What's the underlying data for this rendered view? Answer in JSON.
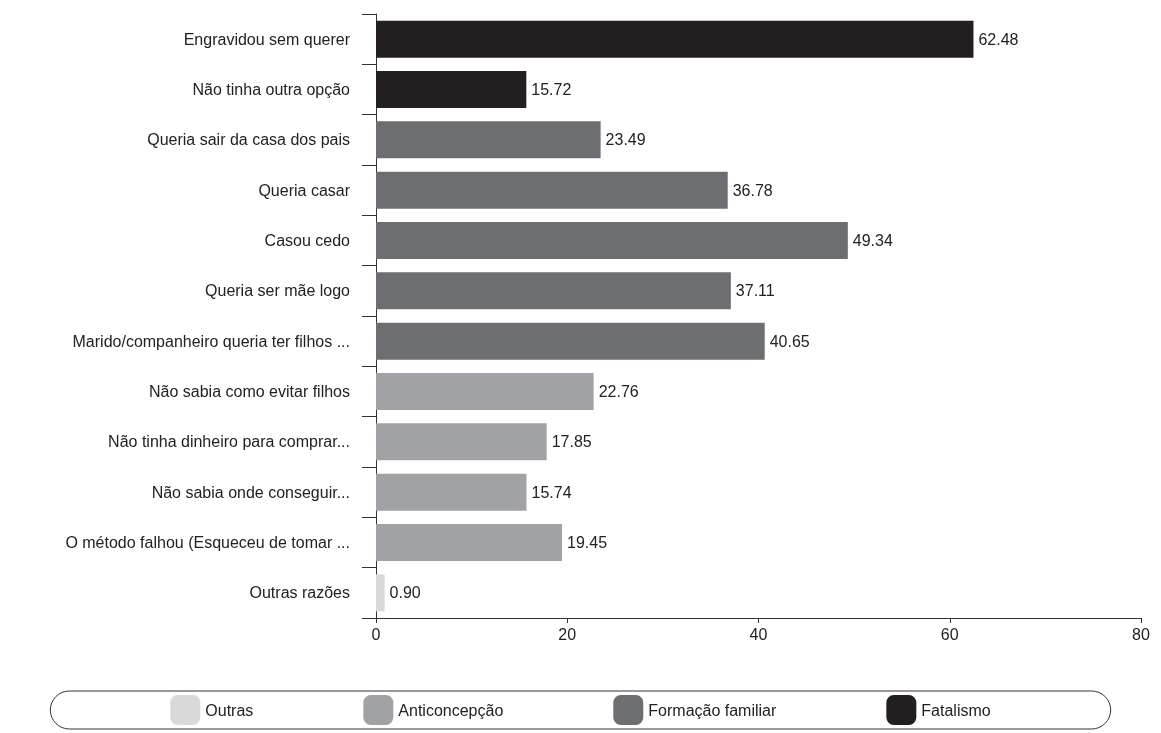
{
  "chart_data": {
    "type": "bar",
    "orientation": "horizontal",
    "categories": [
      "Engravidou sem querer",
      "Não tinha outra opção",
      "Queria sair da casa dos pais",
      "Queria casar",
      "Casou cedo",
      "Queria ser mãe logo",
      "Marido/companheiro queria ter filhos ...",
      "Não sabia como evitar filhos",
      "Não tinha dinheiro para comprar...",
      "Não sabia onde conseguir...",
      "O método falhou (Esqueceu de tomar ...",
      "Outras razões"
    ],
    "series": [
      {
        "name": "Outras",
        "color": "#d9d9d9",
        "values": [
          null,
          null,
          null,
          null,
          null,
          null,
          null,
          null,
          null,
          null,
          null,
          0.9
        ],
        "value_labels": [
          null,
          null,
          null,
          null,
          null,
          null,
          null,
          null,
          null,
          null,
          null,
          "0.90"
        ]
      },
      {
        "name": "Anticoncepção",
        "color": "#a0a2a5",
        "values": [
          null,
          null,
          null,
          null,
          null,
          null,
          null,
          22.76,
          17.85,
          15.74,
          19.45,
          null
        ],
        "value_labels": [
          null,
          null,
          null,
          null,
          null,
          null,
          null,
          "22.76",
          "17.85",
          "15.74",
          "19.45",
          null
        ]
      },
      {
        "name": "Formação familiar",
        "color": "#6d6e71",
        "values": [
          null,
          null,
          23.49,
          36.78,
          49.34,
          37.11,
          40.65,
          null,
          null,
          null,
          null,
          null
        ],
        "value_labels": [
          null,
          null,
          "23.49",
          "36.78",
          "49.34",
          "37.11",
          "40.65",
          null,
          null,
          null,
          null,
          null
        ]
      },
      {
        "name": "Fatalismo",
        "color": "#231f20",
        "values": [
          62.48,
          15.72,
          null,
          null,
          null,
          null,
          null,
          null,
          null,
          null,
          null,
          null
        ],
        "value_labels": [
          "62.48",
          "15.72",
          null,
          null,
          null,
          null,
          null,
          null,
          null,
          null,
          null,
          null
        ]
      }
    ],
    "xlim": [
      0,
      80
    ],
    "xticks": [
      0,
      20,
      40,
      60,
      80
    ],
    "grid": false,
    "legend": "bottom"
  }
}
